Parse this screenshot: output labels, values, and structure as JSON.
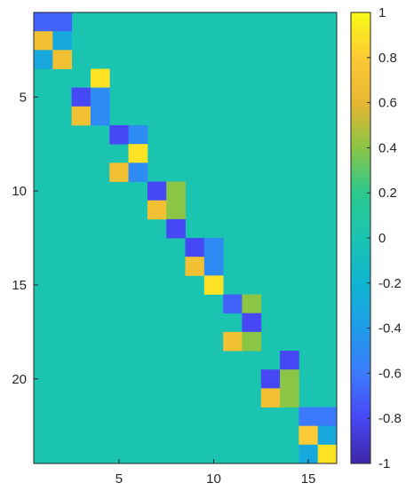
{
  "chart_data": {
    "type": "heatmap",
    "title": "",
    "xlabel": "",
    "ylabel": "",
    "colormap": "parula",
    "clim": [
      -1,
      1
    ],
    "n_cols": 16,
    "n_rows": 24,
    "xlim": [
      0.5,
      16.5
    ],
    "ylim": [
      0.5,
      24.5
    ],
    "x_ticks": [
      5,
      10,
      15
    ],
    "y_ticks": [
      5,
      10,
      15,
      20
    ],
    "colorbar_ticks": [
      1,
      0.8,
      0.6,
      0.4,
      0.2,
      0,
      -0.2,
      -0.4,
      -0.6,
      -0.8,
      -1
    ],
    "colorbar_tick_labels": [
      "1",
      "0.8",
      "0.6",
      "0.4",
      "0.2",
      "0",
      "-0.2",
      "-0.4",
      "-0.6",
      "-0.8",
      "-1"
    ],
    "background_value": 0,
    "cells": [
      {
        "row": 1,
        "col": 1,
        "value": -0.7
      },
      {
        "row": 1,
        "col": 2,
        "value": -0.7
      },
      {
        "row": 2,
        "col": 1,
        "value": 0.7
      },
      {
        "row": 2,
        "col": 2,
        "value": -0.3
      },
      {
        "row": 3,
        "col": 1,
        "value": -0.3
      },
      {
        "row": 3,
        "col": 2,
        "value": 0.7
      },
      {
        "row": 4,
        "col": 4,
        "value": 0.9
      },
      {
        "row": 5,
        "col": 3,
        "value": -0.8
      },
      {
        "row": 5,
        "col": 4,
        "value": -0.5
      },
      {
        "row": 6,
        "col": 3,
        "value": 0.7
      },
      {
        "row": 6,
        "col": 4,
        "value": -0.5
      },
      {
        "row": 7,
        "col": 5,
        "value": -0.8
      },
      {
        "row": 7,
        "col": 6,
        "value": -0.5
      },
      {
        "row": 8,
        "col": 6,
        "value": 0.9
      },
      {
        "row": 9,
        "col": 5,
        "value": 0.7
      },
      {
        "row": 9,
        "col": 6,
        "value": -0.5
      },
      {
        "row": 10,
        "col": 7,
        "value": -0.8
      },
      {
        "row": 10,
        "col": 8,
        "value": 0.4
      },
      {
        "row": 11,
        "col": 7,
        "value": 0.7
      },
      {
        "row": 11,
        "col": 8,
        "value": 0.4
      },
      {
        "row": 12,
        "col": 8,
        "value": -0.8
      },
      {
        "row": 13,
        "col": 9,
        "value": -0.8
      },
      {
        "row": 13,
        "col": 10,
        "value": -0.5
      },
      {
        "row": 14,
        "col": 9,
        "value": 0.7
      },
      {
        "row": 14,
        "col": 10,
        "value": -0.5
      },
      {
        "row": 15,
        "col": 10,
        "value": 0.9
      },
      {
        "row": 16,
        "col": 11,
        "value": -0.7
      },
      {
        "row": 16,
        "col": 12,
        "value": 0.4
      },
      {
        "row": 17,
        "col": 12,
        "value": -0.8
      },
      {
        "row": 18,
        "col": 11,
        "value": 0.7
      },
      {
        "row": 18,
        "col": 12,
        "value": 0.4
      },
      {
        "row": 19,
        "col": 14,
        "value": -0.8
      },
      {
        "row": 20,
        "col": 13,
        "value": -0.8
      },
      {
        "row": 20,
        "col": 14,
        "value": 0.4
      },
      {
        "row": 21,
        "col": 13,
        "value": 0.7
      },
      {
        "row": 21,
        "col": 14,
        "value": 0.4
      },
      {
        "row": 22,
        "col": 15,
        "value": -0.6
      },
      {
        "row": 22,
        "col": 16,
        "value": -0.6
      },
      {
        "row": 23,
        "col": 15,
        "value": 0.8
      },
      {
        "row": 23,
        "col": 16,
        "value": -0.3
      },
      {
        "row": 24,
        "col": 15,
        "value": -0.3
      },
      {
        "row": 24,
        "col": 16,
        "value": 0.9
      }
    ]
  }
}
